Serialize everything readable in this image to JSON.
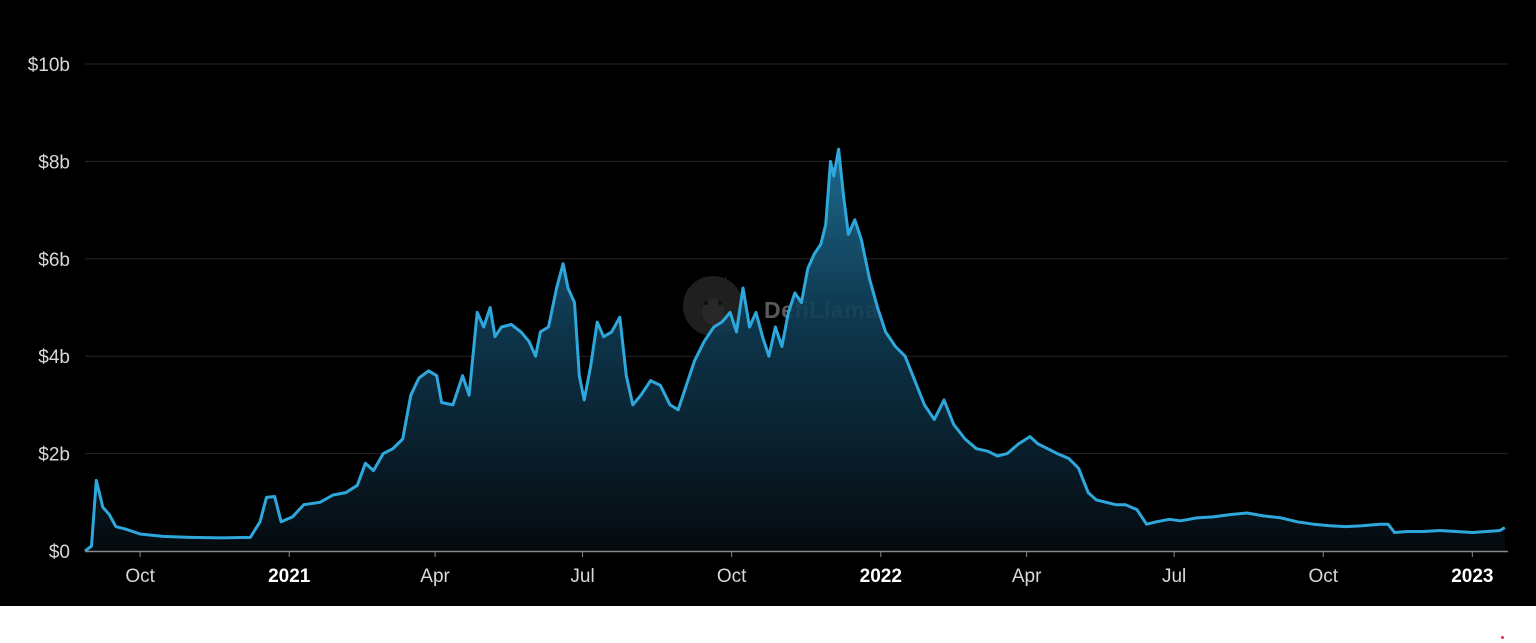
{
  "chart_data": {
    "type": "area",
    "title": "",
    "xlabel": "",
    "ylabel": "",
    "ylim": [
      0,
      10
    ],
    "y_unit": "billion USD",
    "y_ticks": [
      {
        "value": 0,
        "label": "$0"
      },
      {
        "value": 2,
        "label": "$2b"
      },
      {
        "value": 4,
        "label": "$4b"
      },
      {
        "value": 6,
        "label": "$6b"
      },
      {
        "value": 8,
        "label": "$8b"
      },
      {
        "value": 10,
        "label": "$10b"
      }
    ],
    "x_ticks": [
      {
        "date": "2020-10-01",
        "label": "Oct",
        "bold": false
      },
      {
        "date": "2021-01-01",
        "label": "2021",
        "bold": true
      },
      {
        "date": "2021-04-01",
        "label": "Apr",
        "bold": false
      },
      {
        "date": "2021-07-01",
        "label": "Jul",
        "bold": false
      },
      {
        "date": "2021-10-01",
        "label": "Oct",
        "bold": false
      },
      {
        "date": "2022-01-01",
        "label": "2022",
        "bold": true
      },
      {
        "date": "2022-04-01",
        "label": "Apr",
        "bold": false
      },
      {
        "date": "2022-07-01",
        "label": "Jul",
        "bold": false
      },
      {
        "date": "2022-10-01",
        "label": "Oct",
        "bold": false
      },
      {
        "date": "2023-01-01",
        "label": "2023",
        "bold": true
      }
    ],
    "xlim": [
      "2020-08-28",
      "2023-01-23"
    ],
    "grid": true,
    "legend": "none",
    "line_color": "#2ea8dc",
    "background": "#000000",
    "watermark": "DefiLlama",
    "series": [
      {
        "points": [
          [
            "2020-08-28",
            0.0
          ],
          [
            "2020-09-01",
            0.1
          ],
          [
            "2020-09-04",
            1.45
          ],
          [
            "2020-09-08",
            0.9
          ],
          [
            "2020-09-12",
            0.75
          ],
          [
            "2020-09-16",
            0.5
          ],
          [
            "2020-09-22",
            0.45
          ],
          [
            "2020-10-01",
            0.35
          ],
          [
            "2020-10-15",
            0.3
          ],
          [
            "2020-11-01",
            0.28
          ],
          [
            "2020-11-20",
            0.27
          ],
          [
            "2020-12-08",
            0.28
          ],
          [
            "2020-12-14",
            0.6
          ],
          [
            "2020-12-18",
            1.1
          ],
          [
            "2020-12-23",
            1.12
          ],
          [
            "2020-12-27",
            0.6
          ],
          [
            "2021-01-03",
            0.7
          ],
          [
            "2021-01-10",
            0.95
          ],
          [
            "2021-01-20",
            1.0
          ],
          [
            "2021-01-28",
            1.15
          ],
          [
            "2021-02-05",
            1.2
          ],
          [
            "2021-02-12",
            1.35
          ],
          [
            "2021-02-17",
            1.8
          ],
          [
            "2021-02-22",
            1.65
          ],
          [
            "2021-02-28",
            2.0
          ],
          [
            "2021-03-06",
            2.1
          ],
          [
            "2021-03-12",
            2.3
          ],
          [
            "2021-03-17",
            3.2
          ],
          [
            "2021-03-22",
            3.55
          ],
          [
            "2021-03-28",
            3.7
          ],
          [
            "2021-04-02",
            3.6
          ],
          [
            "2021-04-05",
            3.05
          ],
          [
            "2021-04-12",
            3.0
          ],
          [
            "2021-04-18",
            3.6
          ],
          [
            "2021-04-22",
            3.2
          ],
          [
            "2021-04-27",
            4.9
          ],
          [
            "2021-05-01",
            4.6
          ],
          [
            "2021-05-05",
            5.0
          ],
          [
            "2021-05-08",
            4.4
          ],
          [
            "2021-05-12",
            4.6
          ],
          [
            "2021-05-18",
            4.65
          ],
          [
            "2021-05-24",
            4.5
          ],
          [
            "2021-05-29",
            4.3
          ],
          [
            "2021-06-02",
            4.0
          ],
          [
            "2021-06-05",
            4.5
          ],
          [
            "2021-06-10",
            4.6
          ],
          [
            "2021-06-15",
            5.4
          ],
          [
            "2021-06-19",
            5.9
          ],
          [
            "2021-06-22",
            5.4
          ],
          [
            "2021-06-26",
            5.1
          ],
          [
            "2021-06-29",
            3.6
          ],
          [
            "2021-07-02",
            3.1
          ],
          [
            "2021-07-06",
            3.8
          ],
          [
            "2021-07-10",
            4.7
          ],
          [
            "2021-07-14",
            4.4
          ],
          [
            "2021-07-19",
            4.5
          ],
          [
            "2021-07-24",
            4.8
          ],
          [
            "2021-07-28",
            3.6
          ],
          [
            "2021-08-01",
            3.0
          ],
          [
            "2021-08-06",
            3.2
          ],
          [
            "2021-08-12",
            3.5
          ],
          [
            "2021-08-18",
            3.4
          ],
          [
            "2021-08-24",
            3.0
          ],
          [
            "2021-08-29",
            2.9
          ],
          [
            "2021-09-03",
            3.4
          ],
          [
            "2021-09-08",
            3.9
          ],
          [
            "2021-09-14",
            4.3
          ],
          [
            "2021-09-20",
            4.6
          ],
          [
            "2021-09-25",
            4.7
          ],
          [
            "2021-09-30",
            4.9
          ],
          [
            "2021-10-04",
            4.5
          ],
          [
            "2021-10-08",
            5.4
          ],
          [
            "2021-10-12",
            4.6
          ],
          [
            "2021-10-16",
            4.9
          ],
          [
            "2021-10-20",
            4.4
          ],
          [
            "2021-10-24",
            4.0
          ],
          [
            "2021-10-28",
            4.6
          ],
          [
            "2021-11-01",
            4.2
          ],
          [
            "2021-11-05",
            4.9
          ],
          [
            "2021-11-09",
            5.3
          ],
          [
            "2021-11-13",
            5.1
          ],
          [
            "2021-11-17",
            5.8
          ],
          [
            "2021-11-21",
            6.1
          ],
          [
            "2021-11-25",
            6.3
          ],
          [
            "2021-11-28",
            6.7
          ],
          [
            "2021-12-01",
            8.0
          ],
          [
            "2021-12-03",
            7.7
          ],
          [
            "2021-12-06",
            8.25
          ],
          [
            "2021-12-09",
            7.3
          ],
          [
            "2021-12-12",
            6.5
          ],
          [
            "2021-12-16",
            6.8
          ],
          [
            "2021-12-20",
            6.4
          ],
          [
            "2021-12-25",
            5.6
          ],
          [
            "2021-12-30",
            5.0
          ],
          [
            "2022-01-04",
            4.5
          ],
          [
            "2022-01-10",
            4.2
          ],
          [
            "2022-01-16",
            4.0
          ],
          [
            "2022-01-22",
            3.5
          ],
          [
            "2022-01-28",
            3.0
          ],
          [
            "2022-02-03",
            2.7
          ],
          [
            "2022-02-09",
            3.1
          ],
          [
            "2022-02-15",
            2.6
          ],
          [
            "2022-02-22",
            2.3
          ],
          [
            "2022-03-01",
            2.1
          ],
          [
            "2022-03-08",
            2.05
          ],
          [
            "2022-03-14",
            1.95
          ],
          [
            "2022-03-20",
            2.0
          ],
          [
            "2022-03-27",
            2.2
          ],
          [
            "2022-04-03",
            2.35
          ],
          [
            "2022-04-08",
            2.2
          ],
          [
            "2022-04-14",
            2.1
          ],
          [
            "2022-04-20",
            2.0
          ],
          [
            "2022-04-27",
            1.9
          ],
          [
            "2022-05-03",
            1.7
          ],
          [
            "2022-05-09",
            1.2
          ],
          [
            "2022-05-14",
            1.05
          ],
          [
            "2022-05-20",
            1.0
          ],
          [
            "2022-05-26",
            0.95
          ],
          [
            "2022-06-01",
            0.95
          ],
          [
            "2022-06-08",
            0.85
          ],
          [
            "2022-06-14",
            0.55
          ],
          [
            "2022-06-20",
            0.6
          ],
          [
            "2022-06-28",
            0.65
          ],
          [
            "2022-07-05",
            0.62
          ],
          [
            "2022-07-15",
            0.68
          ],
          [
            "2022-07-25",
            0.7
          ],
          [
            "2022-08-05",
            0.75
          ],
          [
            "2022-08-15",
            0.78
          ],
          [
            "2022-08-25",
            0.72
          ],
          [
            "2022-09-05",
            0.68
          ],
          [
            "2022-09-15",
            0.6
          ],
          [
            "2022-09-25",
            0.55
          ],
          [
            "2022-10-05",
            0.52
          ],
          [
            "2022-10-15",
            0.5
          ],
          [
            "2022-10-25",
            0.52
          ],
          [
            "2022-11-05",
            0.55
          ],
          [
            "2022-11-10",
            0.55
          ],
          [
            "2022-11-14",
            0.38
          ],
          [
            "2022-11-22",
            0.4
          ],
          [
            "2022-12-02",
            0.4
          ],
          [
            "2022-12-12",
            0.42
          ],
          [
            "2022-12-22",
            0.4
          ],
          [
            "2023-01-01",
            0.38
          ],
          [
            "2023-01-10",
            0.4
          ],
          [
            "2023-01-18",
            0.42
          ],
          [
            "2023-01-21",
            0.48
          ]
        ]
      }
    ]
  }
}
